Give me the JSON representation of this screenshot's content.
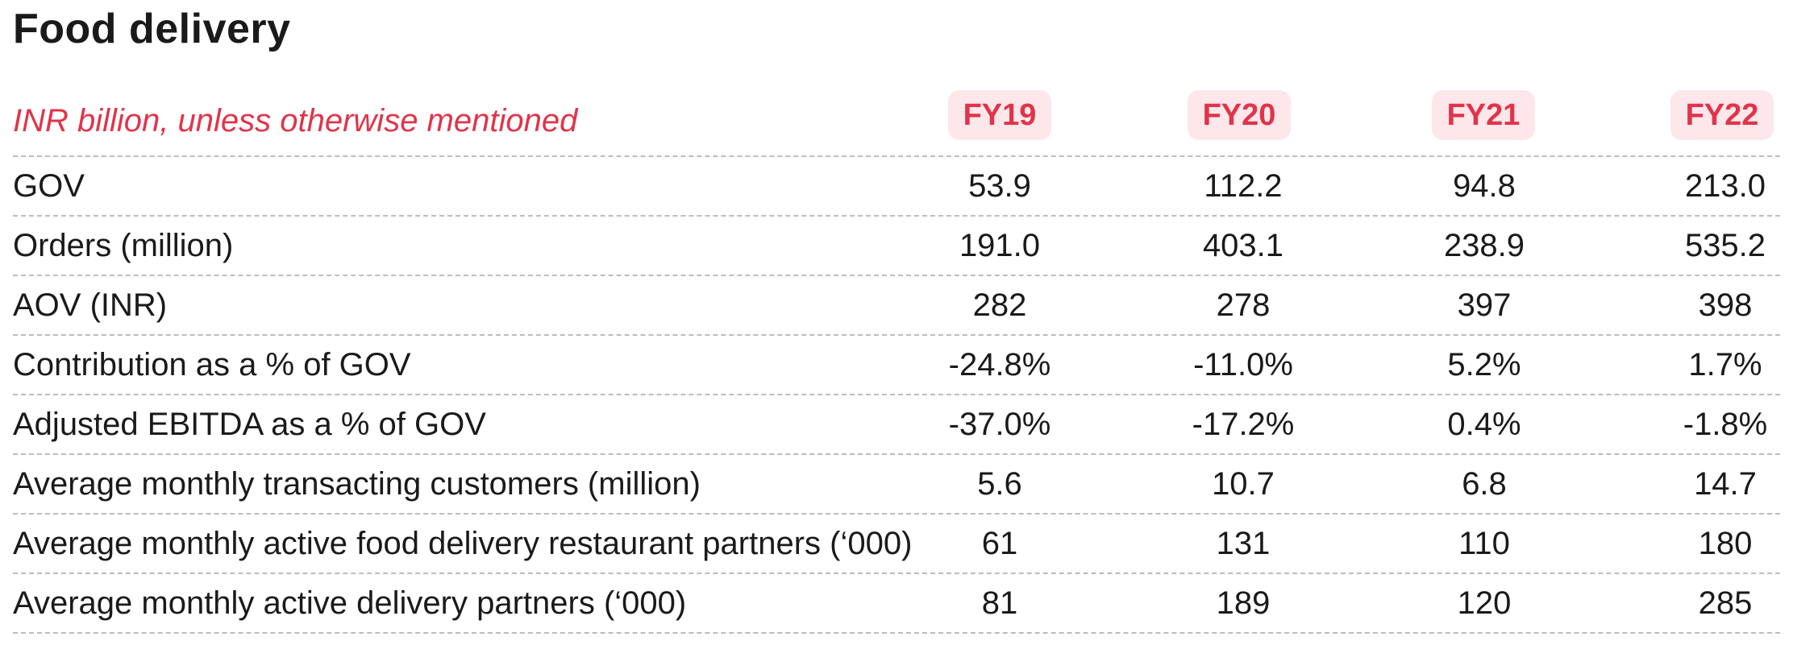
{
  "title": "Food delivery",
  "table": {
    "unit_note": "INR billion, unless otherwise mentioned",
    "columns": [
      "FY19",
      "FY20",
      "FY21",
      "FY22"
    ],
    "rows": [
      {
        "label": "GOV",
        "values": [
          "53.9",
          "112.2",
          "94.8",
          "213.0"
        ]
      },
      {
        "label": "Orders (million)",
        "values": [
          "191.0",
          "403.1",
          "238.9",
          "535.2"
        ]
      },
      {
        "label": "AOV (INR)",
        "values": [
          "282",
          "278",
          "397",
          "398"
        ]
      },
      {
        "label": "Contribution as a % of GOV",
        "values": [
          "-24.8%",
          "-11.0%",
          "5.2%",
          "1.7%"
        ]
      },
      {
        "label": "Adjusted EBITDA as a % of GOV",
        "values": [
          "-37.0%",
          "-17.2%",
          "0.4%",
          "-1.8%"
        ]
      },
      {
        "label": "Average monthly transacting customers (million)",
        "values": [
          "5.6",
          "10.7",
          "6.8",
          "14.7"
        ]
      },
      {
        "label": "Average monthly active food delivery restaurant partners (‘000)",
        "values": [
          "61",
          "131",
          "110",
          "180"
        ]
      },
      {
        "label": "Average monthly active delivery partners (‘000)",
        "values": [
          "81",
          "189",
          "120",
          "285"
        ]
      }
    ]
  },
  "colors": {
    "accent": "#e0344a",
    "pill_background": "#fde7ea",
    "text": "#1a1a1a",
    "divider": "#bdbdbd"
  }
}
